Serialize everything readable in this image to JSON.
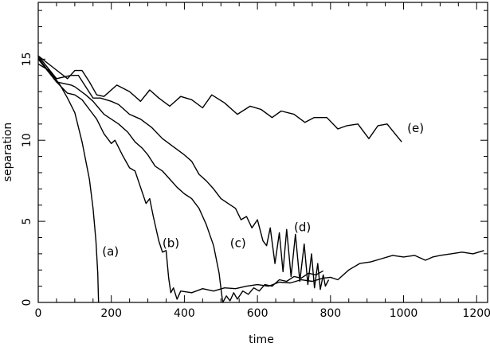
{
  "chart_data": {
    "type": "line",
    "title": "",
    "xlabel": "time",
    "ylabel": "separation",
    "xlim": [
      0,
      1230
    ],
    "ylim": [
      0,
      18.5
    ],
    "grid": false,
    "x_ticks_major": [
      0,
      200,
      400,
      600,
      800,
      1000,
      1200
    ],
    "x_tick_labels": [
      "0",
      "200",
      "400",
      "600",
      "800",
      "1000",
      "1200"
    ],
    "y_ticks_major": [
      0,
      5,
      10,
      15
    ],
    "y_tick_labels": [
      "0",
      "5",
      "10",
      "15"
    ],
    "series": [
      {
        "label": "(a)",
        "label_at": [
          175,
          2.9
        ],
        "points": [
          [
            0,
            14.7
          ],
          [
            30,
            14.3
          ],
          [
            60,
            13.4
          ],
          [
            80,
            12.6
          ],
          [
            100,
            11.7
          ],
          [
            120,
            9.9
          ],
          [
            140,
            7.6
          ],
          [
            150,
            5.8
          ],
          [
            158,
            3.8
          ],
          [
            163,
            1.8
          ],
          [
            165,
            0
          ]
        ]
      },
      {
        "label": "(b)",
        "label_at": [
          340,
          3.4
        ],
        "points": [
          [
            0,
            15.0
          ],
          [
            50,
            13.6
          ],
          [
            80,
            12.9
          ],
          [
            100,
            12.8
          ],
          [
            120,
            12.5
          ],
          [
            140,
            11.9
          ],
          [
            160,
            11.3
          ],
          [
            180,
            10.4
          ],
          [
            200,
            9.8
          ],
          [
            210,
            10.0
          ],
          [
            230,
            9.1
          ],
          [
            250,
            8.3
          ],
          [
            265,
            8.1
          ],
          [
            280,
            7.1
          ],
          [
            295,
            6.1
          ],
          [
            305,
            6.4
          ],
          [
            315,
            5.3
          ],
          [
            330,
            3.8
          ],
          [
            340,
            3.1
          ],
          [
            350,
            3.2
          ],
          [
            357,
            1.5
          ],
          [
            363,
            0.6
          ],
          [
            370,
            0.9
          ],
          [
            380,
            0.2
          ],
          [
            390,
            0.7
          ],
          [
            420,
            0.6
          ],
          [
            450,
            0.85
          ],
          [
            480,
            0.7
          ],
          [
            510,
            0.9
          ],
          [
            540,
            0.85
          ],
          [
            570,
            1.0
          ],
          [
            600,
            1.1
          ],
          [
            630,
            1.0
          ],
          [
            660,
            1.25
          ],
          [
            690,
            1.2
          ],
          [
            720,
            1.4
          ],
          [
            750,
            1.3
          ],
          [
            780,
            1.5
          ],
          [
            800,
            1.55
          ],
          [
            820,
            1.4
          ],
          [
            850,
            2.0
          ],
          [
            880,
            2.4
          ],
          [
            910,
            2.5
          ],
          [
            940,
            2.7
          ],
          [
            970,
            2.9
          ],
          [
            1000,
            2.8
          ],
          [
            1030,
            2.9
          ],
          [
            1060,
            2.6
          ],
          [
            1080,
            2.8
          ],
          [
            1100,
            2.9
          ],
          [
            1130,
            3.0
          ],
          [
            1160,
            3.1
          ],
          [
            1190,
            3.0
          ],
          [
            1220,
            3.2
          ]
        ]
      },
      {
        "label": "(c)",
        "label_at": [
          525,
          3.4
        ],
        "points": [
          [
            0,
            15.1
          ],
          [
            50,
            13.6
          ],
          [
            90,
            13.4
          ],
          [
            100,
            13.3
          ],
          [
            130,
            12.8
          ],
          [
            150,
            12.4
          ],
          [
            180,
            11.6
          ],
          [
            200,
            11.3
          ],
          [
            220,
            11.0
          ],
          [
            245,
            10.5
          ],
          [
            265,
            9.9
          ],
          [
            285,
            9.5
          ],
          [
            300,
            9.1
          ],
          [
            320,
            8.4
          ],
          [
            340,
            8.1
          ],
          [
            360,
            7.6
          ],
          [
            380,
            7.1
          ],
          [
            400,
            6.7
          ],
          [
            420,
            6.4
          ],
          [
            440,
            5.8
          ],
          [
            460,
            4.8
          ],
          [
            480,
            3.5
          ],
          [
            495,
            1.8
          ],
          [
            502,
            0.5
          ],
          [
            505,
            0
          ],
          [
            515,
            0.4
          ],
          [
            525,
            0.1
          ],
          [
            535,
            0.6
          ],
          [
            545,
            0.2
          ],
          [
            560,
            0.7
          ],
          [
            575,
            0.5
          ],
          [
            590,
            0.9
          ],
          [
            605,
            0.7
          ],
          [
            620,
            1.1
          ],
          [
            640,
            1.0
          ],
          [
            660,
            1.4
          ],
          [
            680,
            1.3
          ],
          [
            700,
            1.6
          ],
          [
            720,
            1.5
          ],
          [
            740,
            1.8
          ],
          [
            760,
            1.7
          ],
          [
            780,
            1.95
          ]
        ]
      },
      {
        "label": "(d)",
        "label_at": [
          700,
          4.4
        ],
        "points": [
          [
            0,
            15.2
          ],
          [
            50,
            13.8
          ],
          [
            90,
            14.0
          ],
          [
            110,
            14.0
          ],
          [
            130,
            13.3
          ],
          [
            150,
            12.6
          ],
          [
            170,
            12.6
          ],
          [
            200,
            12.4
          ],
          [
            220,
            12.2
          ],
          [
            250,
            11.6
          ],
          [
            280,
            11.3
          ],
          [
            310,
            10.8
          ],
          [
            340,
            10.1
          ],
          [
            370,
            9.6
          ],
          [
            400,
            9.1
          ],
          [
            420,
            8.7
          ],
          [
            440,
            7.9
          ],
          [
            460,
            7.5
          ],
          [
            480,
            7.0
          ],
          [
            500,
            6.4
          ],
          [
            520,
            6.1
          ],
          [
            540,
            5.8
          ],
          [
            555,
            5.1
          ],
          [
            570,
            5.3
          ],
          [
            585,
            4.6
          ],
          [
            600,
            5.1
          ],
          [
            615,
            3.8
          ],
          [
            625,
            3.5
          ],
          [
            635,
            4.6
          ],
          [
            648,
            2.4
          ],
          [
            660,
            4.3
          ],
          [
            670,
            1.9
          ],
          [
            680,
            4.5
          ],
          [
            692,
            1.6
          ],
          [
            704,
            4.2
          ],
          [
            716,
            1.3
          ],
          [
            728,
            3.6
          ],
          [
            738,
            1.1
          ],
          [
            748,
            3.0
          ],
          [
            756,
            0.9
          ],
          [
            765,
            2.4
          ],
          [
            772,
            0.8
          ],
          [
            780,
            1.7
          ],
          [
            786,
            1.0
          ],
          [
            795,
            1.4
          ]
        ]
      },
      {
        "label": "(e)",
        "label_at": [
          1010,
          10.5
        ],
        "points": [
          [
            0,
            15.2
          ],
          [
            40,
            14.5
          ],
          [
            80,
            13.8
          ],
          [
            100,
            14.3
          ],
          [
            120,
            14.3
          ],
          [
            140,
            13.6
          ],
          [
            160,
            12.8
          ],
          [
            180,
            12.7
          ],
          [
            215,
            13.4
          ],
          [
            250,
            13.0
          ],
          [
            280,
            12.4
          ],
          [
            305,
            13.1
          ],
          [
            330,
            12.6
          ],
          [
            360,
            12.1
          ],
          [
            390,
            12.7
          ],
          [
            420,
            12.5
          ],
          [
            450,
            12.0
          ],
          [
            475,
            12.8
          ],
          [
            510,
            12.3
          ],
          [
            545,
            11.6
          ],
          [
            580,
            12.1
          ],
          [
            610,
            11.9
          ],
          [
            640,
            11.4
          ],
          [
            665,
            11.8
          ],
          [
            700,
            11.6
          ],
          [
            730,
            11.1
          ],
          [
            755,
            11.4
          ],
          [
            790,
            11.4
          ],
          [
            820,
            10.7
          ],
          [
            845,
            10.9
          ],
          [
            875,
            11.0
          ],
          [
            905,
            10.1
          ],
          [
            930,
            10.9
          ],
          [
            955,
            11.0
          ],
          [
            980,
            10.3
          ],
          [
            995,
            9.9
          ]
        ]
      }
    ]
  }
}
